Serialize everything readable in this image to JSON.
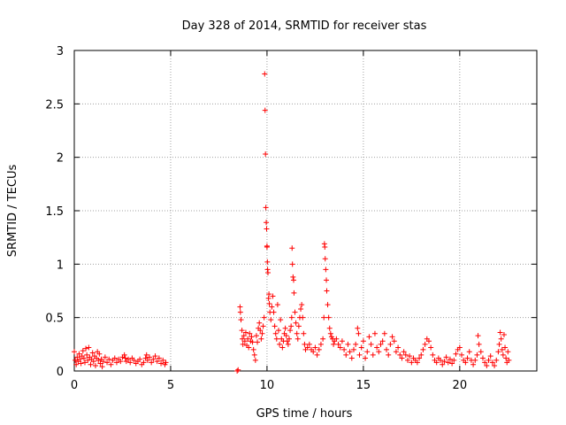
{
  "chart_data": {
    "type": "scatter",
    "title": "Day 328 of 2014, SRMTID for receiver stas",
    "xlabel": "GPS time / hours",
    "ylabel": "SRMTID / TECUs",
    "xlim": [
      0,
      24
    ],
    "ylim": [
      0,
      3
    ],
    "xticks": [
      0,
      5,
      10,
      15,
      20
    ],
    "xtick_labels": [
      "0",
      "5",
      "10",
      "15",
      "20"
    ],
    "yticks": [
      0,
      0.5,
      1,
      1.5,
      2,
      2.5,
      3
    ],
    "ytick_labels": [
      "0",
      "0.5",
      "1",
      "1.5",
      "2",
      "2.5",
      "3"
    ],
    "grid": true,
    "marker": "+",
    "series": [
      {
        "name": "stas",
        "color": "#ff0000",
        "points": [
          [
            0.0,
            0.18
          ],
          [
            0.05,
            0.1
          ],
          [
            0.1,
            0.06
          ],
          [
            0.15,
            0.13
          ],
          [
            0.2,
            0.09
          ],
          [
            0.25,
            0.16
          ],
          [
            0.3,
            0.11
          ],
          [
            0.35,
            0.07
          ],
          [
            0.4,
            0.14
          ],
          [
            0.45,
            0.19
          ],
          [
            0.5,
            0.12
          ],
          [
            0.55,
            0.08
          ],
          [
            0.6,
            0.21
          ],
          [
            0.65,
            0.15
          ],
          [
            0.7,
            0.1
          ],
          [
            0.75,
            0.22
          ],
          [
            0.8,
            0.13
          ],
          [
            0.85,
            0.06
          ],
          [
            0.9,
            0.11
          ],
          [
            0.95,
            0.17
          ],
          [
            1.0,
            0.09
          ],
          [
            1.05,
            0.14
          ],
          [
            1.1,
            0.05
          ],
          [
            1.15,
            0.12
          ],
          [
            1.2,
            0.18
          ],
          [
            1.25,
            0.1
          ],
          [
            1.3,
            0.16
          ],
          [
            1.35,
            0.07
          ],
          [
            1.4,
            0.11
          ],
          [
            1.45,
            0.04
          ],
          [
            1.5,
            0.09
          ],
          [
            1.6,
            0.13
          ],
          [
            1.7,
            0.08
          ],
          [
            1.8,
            0.11
          ],
          [
            1.9,
            0.06
          ],
          [
            2.0,
            0.1
          ],
          [
            2.1,
            0.12
          ],
          [
            2.2,
            0.08
          ],
          [
            2.3,
            0.11
          ],
          [
            2.4,
            0.09
          ],
          [
            2.5,
            0.13
          ],
          [
            2.6,
            0.15
          ],
          [
            2.65,
            0.12
          ],
          [
            2.7,
            0.09
          ],
          [
            2.8,
            0.11
          ],
          [
            2.9,
            0.08
          ],
          [
            3.0,
            0.12
          ],
          [
            3.1,
            0.1
          ],
          [
            3.2,
            0.07
          ],
          [
            3.3,
            0.09
          ],
          [
            3.4,
            0.11
          ],
          [
            3.5,
            0.06
          ],
          [
            3.6,
            0.08
          ],
          [
            3.7,
            0.12
          ],
          [
            3.75,
            0.15
          ],
          [
            3.8,
            0.1
          ],
          [
            3.9,
            0.13
          ],
          [
            4.0,
            0.08
          ],
          [
            4.1,
            0.11
          ],
          [
            4.2,
            0.14
          ],
          [
            4.3,
            0.09
          ],
          [
            4.4,
            0.12
          ],
          [
            4.5,
            0.07
          ],
          [
            4.6,
            0.1
          ],
          [
            4.7,
            0.06
          ],
          [
            4.75,
            0.08
          ],
          [
            8.45,
            0.0
          ],
          [
            8.5,
            0.01
          ],
          [
            8.6,
            0.6
          ],
          [
            8.62,
            0.55
          ],
          [
            8.65,
            0.48
          ],
          [
            8.7,
            0.38
          ],
          [
            8.72,
            0.3
          ],
          [
            8.75,
            0.25
          ],
          [
            8.8,
            0.33
          ],
          [
            8.85,
            0.28
          ],
          [
            8.9,
            0.36
          ],
          [
            8.95,
            0.24
          ],
          [
            9.0,
            0.3
          ],
          [
            9.05,
            0.22
          ],
          [
            9.1,
            0.35
          ],
          [
            9.15,
            0.28
          ],
          [
            9.2,
            0.32
          ],
          [
            9.25,
            0.27
          ],
          [
            9.3,
            0.2
          ],
          [
            9.35,
            0.15
          ],
          [
            9.4,
            0.1
          ],
          [
            9.45,
            0.33
          ],
          [
            9.5,
            0.27
          ],
          [
            9.55,
            0.4
          ],
          [
            9.6,
            0.45
          ],
          [
            9.65,
            0.38
          ],
          [
            9.7,
            0.3
          ],
          [
            9.75,
            0.35
          ],
          [
            9.8,
            0.42
          ],
          [
            9.85,
            0.5
          ],
          [
            9.88,
            2.78
          ],
          [
            9.9,
            2.44
          ],
          [
            9.92,
            2.03
          ],
          [
            9.94,
            1.53
          ],
          [
            9.96,
            1.39
          ],
          [
            9.98,
            1.33
          ],
          [
            10.0,
            1.17
          ],
          [
            10.0,
            1.16
          ],
          [
            10.02,
            1.02
          ],
          [
            10.03,
            0.95
          ],
          [
            10.05,
            0.92
          ],
          [
            10.08,
            0.68
          ],
          [
            10.1,
            0.72
          ],
          [
            10.12,
            0.63
          ],
          [
            10.15,
            0.55
          ],
          [
            10.2,
            0.48
          ],
          [
            10.25,
            0.6
          ],
          [
            10.3,
            0.7
          ],
          [
            10.35,
            0.55
          ],
          [
            10.4,
            0.42
          ],
          [
            10.45,
            0.35
          ],
          [
            10.5,
            0.3
          ],
          [
            10.55,
            0.62
          ],
          [
            10.6,
            0.38
          ],
          [
            10.65,
            0.25
          ],
          [
            10.7,
            0.48
          ],
          [
            10.75,
            0.3
          ],
          [
            10.8,
            0.22
          ],
          [
            10.85,
            0.28
          ],
          [
            10.9,
            0.35
          ],
          [
            10.95,
            0.4
          ],
          [
            11.0,
            0.33
          ],
          [
            11.05,
            0.28
          ],
          [
            11.1,
            0.25
          ],
          [
            11.15,
            0.3
          ],
          [
            11.2,
            0.38
          ],
          [
            11.25,
            0.42
          ],
          [
            11.28,
            0.5
          ],
          [
            11.3,
            1.15
          ],
          [
            11.32,
            1.0
          ],
          [
            11.35,
            0.88
          ],
          [
            11.38,
            0.85
          ],
          [
            11.4,
            0.73
          ],
          [
            11.45,
            0.55
          ],
          [
            11.5,
            0.45
          ],
          [
            11.55,
            0.35
          ],
          [
            11.6,
            0.3
          ],
          [
            11.65,
            0.42
          ],
          [
            11.7,
            0.5
          ],
          [
            11.75,
            0.58
          ],
          [
            11.8,
            0.62
          ],
          [
            11.85,
            0.5
          ],
          [
            11.9,
            0.35
          ],
          [
            11.95,
            0.25
          ],
          [
            12.0,
            0.2
          ],
          [
            12.1,
            0.22
          ],
          [
            12.2,
            0.25
          ],
          [
            12.3,
            0.2
          ],
          [
            12.4,
            0.18
          ],
          [
            12.5,
            0.22
          ],
          [
            12.6,
            0.15
          ],
          [
            12.7,
            0.2
          ],
          [
            12.8,
            0.25
          ],
          [
            12.9,
            0.3
          ],
          [
            12.95,
            0.5
          ],
          [
            12.98,
            1.19
          ],
          [
            13.0,
            1.16
          ],
          [
            13.02,
            1.05
          ],
          [
            13.05,
            0.95
          ],
          [
            13.08,
            0.85
          ],
          [
            13.1,
            0.75
          ],
          [
            13.15,
            0.62
          ],
          [
            13.2,
            0.5
          ],
          [
            13.25,
            0.4
          ],
          [
            13.3,
            0.35
          ],
          [
            13.35,
            0.32
          ],
          [
            13.4,
            0.3
          ],
          [
            13.45,
            0.25
          ],
          [
            13.5,
            0.28
          ],
          [
            13.6,
            0.3
          ],
          [
            13.7,
            0.25
          ],
          [
            13.8,
            0.22
          ],
          [
            13.9,
            0.28
          ],
          [
            14.0,
            0.2
          ],
          [
            14.1,
            0.15
          ],
          [
            14.2,
            0.25
          ],
          [
            14.3,
            0.18
          ],
          [
            14.4,
            0.12
          ],
          [
            14.5,
            0.2
          ],
          [
            14.6,
            0.25
          ],
          [
            14.7,
            0.4
          ],
          [
            14.75,
            0.35
          ],
          [
            14.8,
            0.15
          ],
          [
            14.9,
            0.22
          ],
          [
            15.0,
            0.28
          ],
          [
            15.1,
            0.12
          ],
          [
            15.2,
            0.18
          ],
          [
            15.3,
            0.32
          ],
          [
            15.4,
            0.25
          ],
          [
            15.5,
            0.15
          ],
          [
            15.6,
            0.35
          ],
          [
            15.7,
            0.22
          ],
          [
            15.8,
            0.18
          ],
          [
            15.9,
            0.25
          ],
          [
            16.0,
            0.28
          ],
          [
            16.1,
            0.35
          ],
          [
            16.2,
            0.2
          ],
          [
            16.3,
            0.15
          ],
          [
            16.4,
            0.25
          ],
          [
            16.5,
            0.32
          ],
          [
            16.6,
            0.28
          ],
          [
            16.7,
            0.18
          ],
          [
            16.8,
            0.22
          ],
          [
            16.9,
            0.15
          ],
          [
            17.0,
            0.12
          ],
          [
            17.1,
            0.18
          ],
          [
            17.2,
            0.15
          ],
          [
            17.3,
            0.1
          ],
          [
            17.4,
            0.14
          ],
          [
            17.5,
            0.08
          ],
          [
            17.6,
            0.12
          ],
          [
            17.7,
            0.1
          ],
          [
            17.8,
            0.08
          ],
          [
            17.9,
            0.12
          ],
          [
            18.0,
            0.15
          ],
          [
            18.1,
            0.2
          ],
          [
            18.2,
            0.25
          ],
          [
            18.3,
            0.3
          ],
          [
            18.4,
            0.28
          ],
          [
            18.5,
            0.22
          ],
          [
            18.6,
            0.15
          ],
          [
            18.7,
            0.1
          ],
          [
            18.8,
            0.08
          ],
          [
            18.9,
            0.12
          ],
          [
            19.0,
            0.1
          ],
          [
            19.1,
            0.06
          ],
          [
            19.2,
            0.09
          ],
          [
            19.3,
            0.13
          ],
          [
            19.4,
            0.08
          ],
          [
            19.5,
            0.11
          ],
          [
            19.6,
            0.07
          ],
          [
            19.7,
            0.1
          ],
          [
            19.8,
            0.16
          ],
          [
            19.9,
            0.2
          ],
          [
            20.0,
            0.22
          ],
          [
            20.1,
            0.15
          ],
          [
            20.2,
            0.1
          ],
          [
            20.3,
            0.08
          ],
          [
            20.4,
            0.12
          ],
          [
            20.5,
            0.18
          ],
          [
            20.6,
            0.1
          ],
          [
            20.7,
            0.06
          ],
          [
            20.8,
            0.1
          ],
          [
            20.9,
            0.15
          ],
          [
            20.95,
            0.33
          ],
          [
            21.0,
            0.25
          ],
          [
            21.1,
            0.18
          ],
          [
            21.2,
            0.12
          ],
          [
            21.3,
            0.08
          ],
          [
            21.4,
            0.05
          ],
          [
            21.5,
            0.1
          ],
          [
            21.6,
            0.14
          ],
          [
            21.7,
            0.08
          ],
          [
            21.8,
            0.05
          ],
          [
            21.9,
            0.1
          ],
          [
            22.0,
            0.18
          ],
          [
            22.05,
            0.25
          ],
          [
            22.1,
            0.36
          ],
          [
            22.15,
            0.3
          ],
          [
            22.2,
            0.2
          ],
          [
            22.25,
            0.15
          ],
          [
            22.3,
            0.34
          ],
          [
            22.35,
            0.22
          ],
          [
            22.4,
            0.12
          ],
          [
            22.45,
            0.08
          ],
          [
            22.5,
            0.18
          ],
          [
            22.55,
            0.1
          ]
        ]
      }
    ]
  }
}
